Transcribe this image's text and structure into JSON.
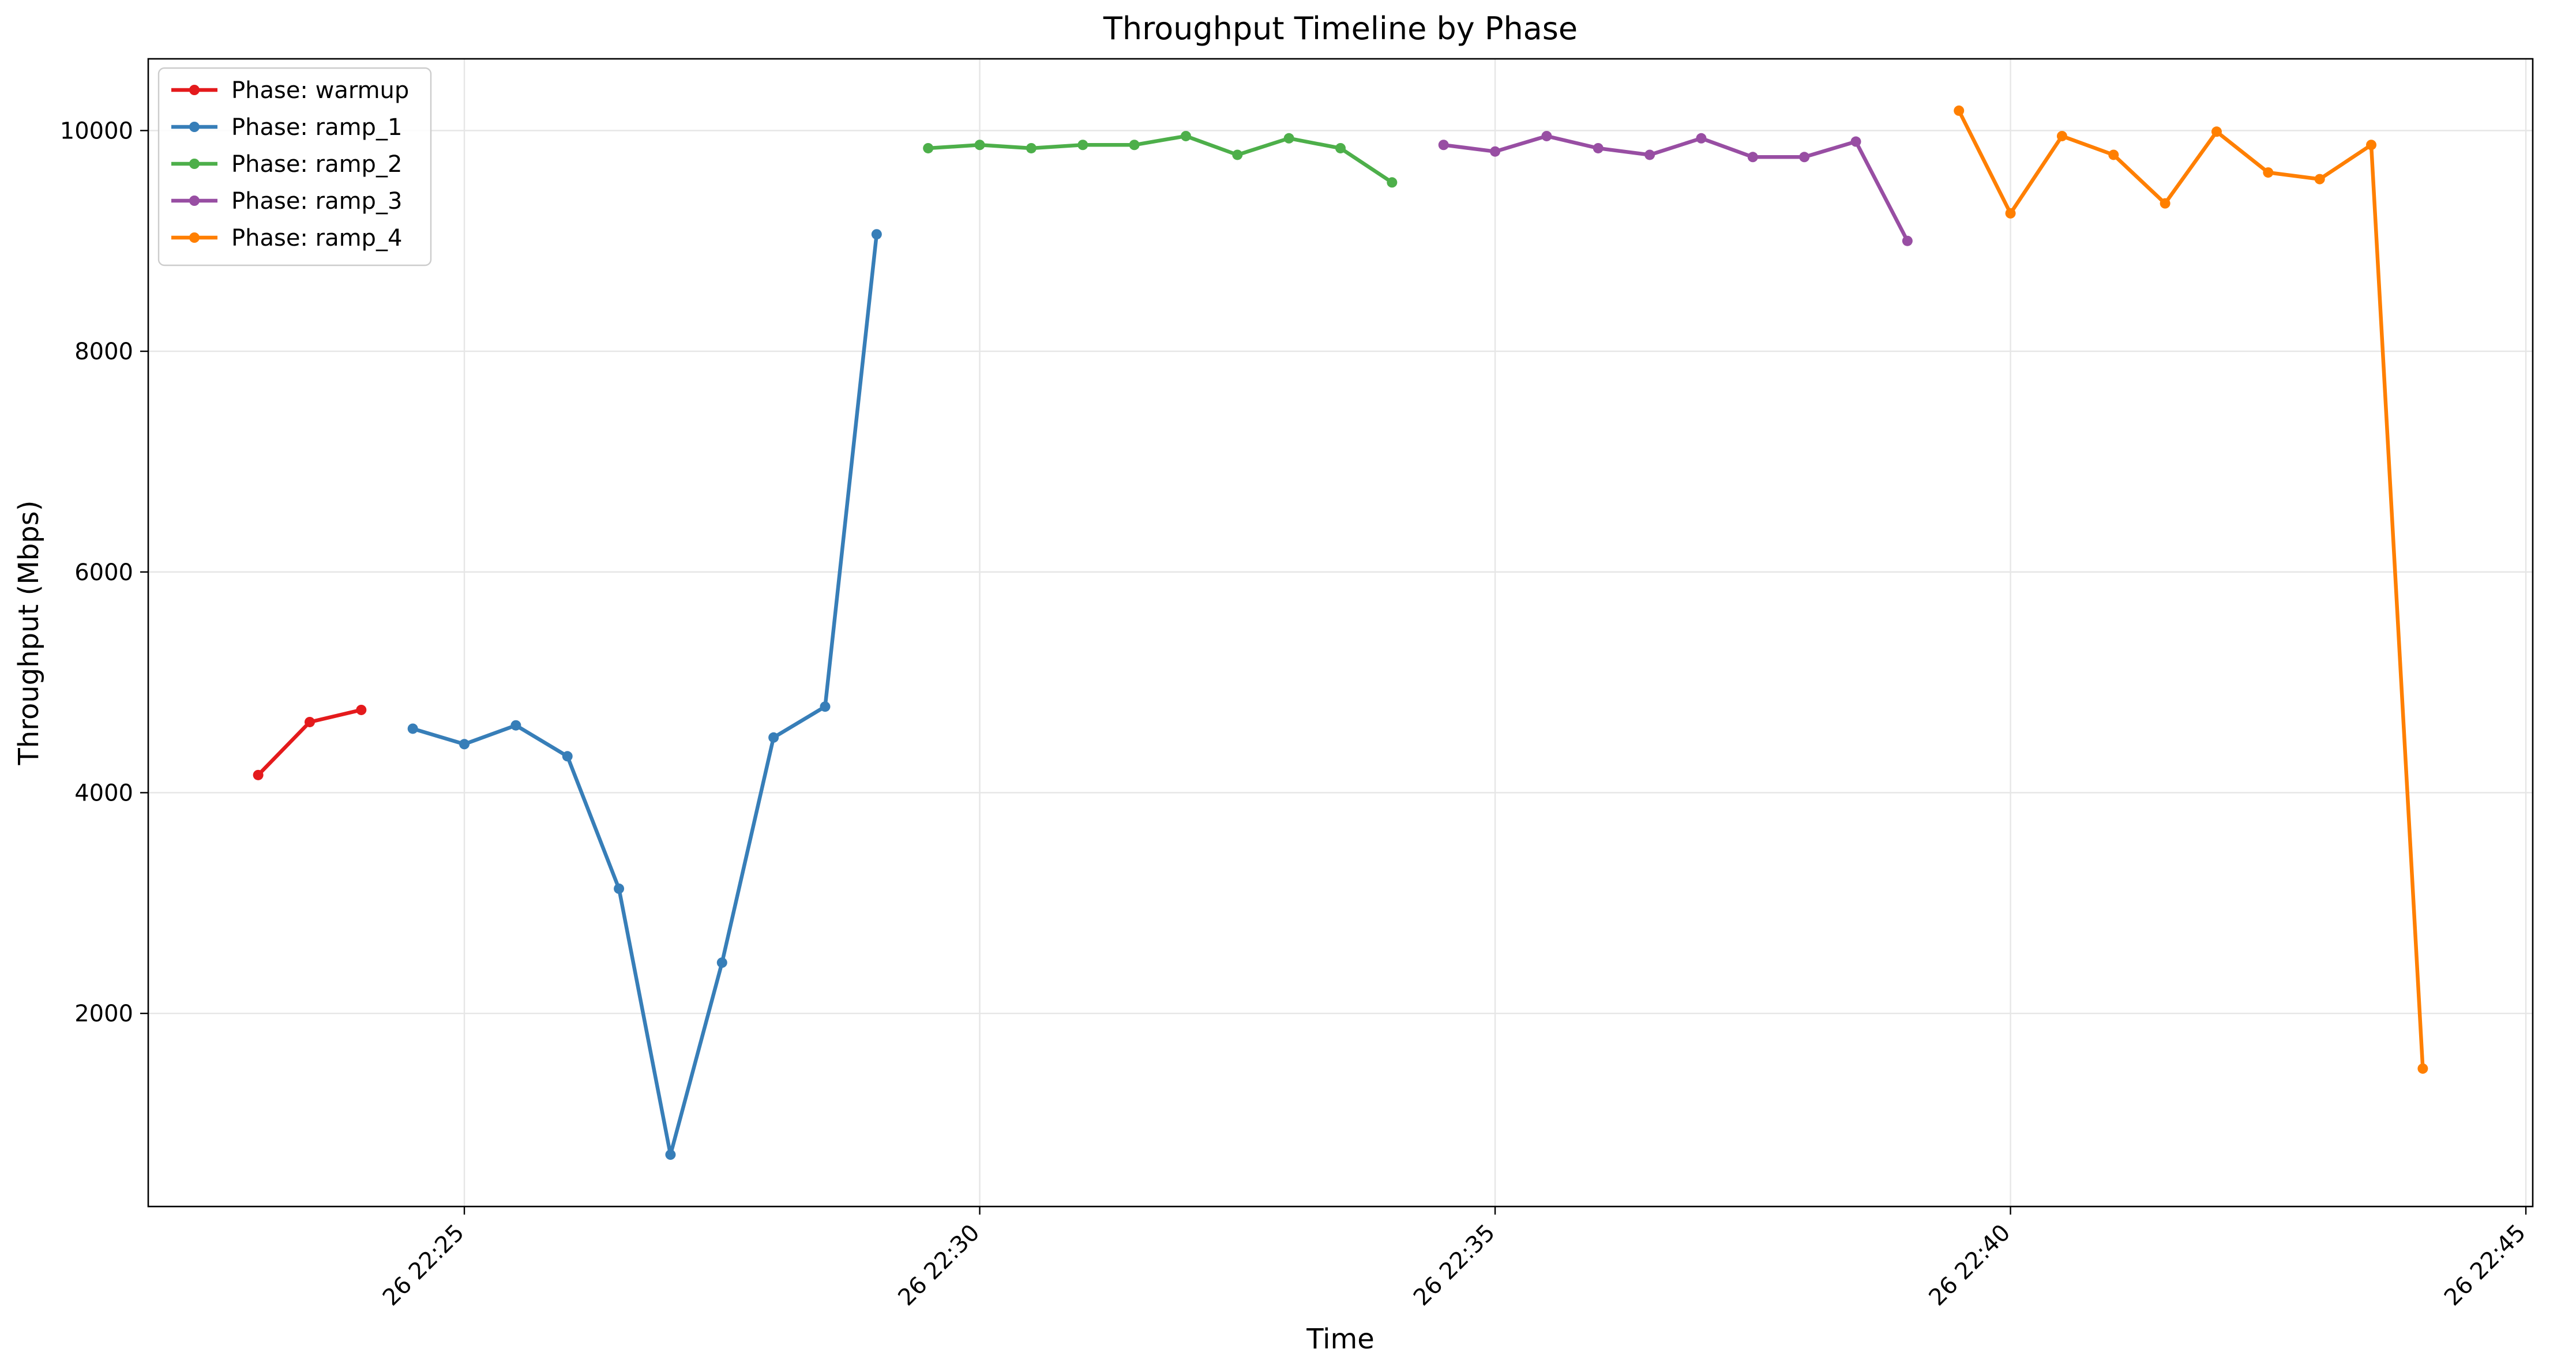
{
  "chart_data": {
    "type": "line",
    "title": "Throughput Timeline by Phase",
    "xlabel": "Time",
    "ylabel": "Throughput (Mbps)",
    "x_unit": "time (HH:MM:SS, day 26)",
    "xlim": [
      "22:21:56",
      "22:45:04"
    ],
    "ylim": [
      250,
      10650
    ],
    "grid": true,
    "legend_position": "upper left",
    "x_ticks": [
      {
        "t": "22:25:00",
        "label": "26 22:25"
      },
      {
        "t": "22:30:00",
        "label": "26 22:30"
      },
      {
        "t": "22:35:00",
        "label": "26 22:35"
      },
      {
        "t": "22:40:00",
        "label": "26 22:40"
      },
      {
        "t": "22:45:00",
        "label": "26 22:45"
      }
    ],
    "y_ticks": [
      {
        "v": 2000,
        "label": "2000"
      },
      {
        "v": 4000,
        "label": "4000"
      },
      {
        "v": 6000,
        "label": "6000"
      },
      {
        "v": 8000,
        "label": "8000"
      },
      {
        "v": 10000,
        "label": "10000"
      }
    ],
    "series": [
      {
        "name": "Phase: warmup",
        "legend_label": "Phase: warmup",
        "color": "#e41a1c",
        "x": [
          "22:23:00",
          "22:23:30",
          "22:24:00"
        ],
        "y": [
          4160,
          4640,
          4750
        ]
      },
      {
        "name": "Phase: ramp_1",
        "legend_label": "Phase: ramp_1",
        "color": "#377eb8",
        "x": [
          "22:24:30",
          "22:25:00",
          "22:25:30",
          "22:26:00",
          "22:26:30",
          "22:27:00",
          "22:27:30",
          "22:28:00",
          "22:28:30",
          "22:29:00"
        ],
        "y": [
          4580,
          4440,
          4610,
          4330,
          3130,
          720,
          2460,
          4500,
          4780,
          9060
        ]
      },
      {
        "name": "Phase: ramp_2",
        "legend_label": "Phase: ramp_2",
        "color": "#4daf4a",
        "x": [
          "22:29:30",
          "22:30:00",
          "22:30:30",
          "22:31:00",
          "22:31:30",
          "22:32:00",
          "22:32:30",
          "22:33:00",
          "22:33:30",
          "22:34:00"
        ],
        "y": [
          9840,
          9870,
          9840,
          9870,
          9870,
          9950,
          9780,
          9930,
          9840,
          9530
        ]
      },
      {
        "name": "Phase: ramp_3",
        "legend_label": "Phase: ramp_3",
        "color": "#984ea3",
        "x": [
          "22:34:30",
          "22:35:00",
          "22:35:30",
          "22:36:00",
          "22:36:30",
          "22:37:00",
          "22:37:30",
          "22:38:00",
          "22:38:30",
          "22:39:00"
        ],
        "y": [
          9870,
          9810,
          9950,
          9840,
          9780,
          9930,
          9760,
          9760,
          9900,
          9000
        ]
      },
      {
        "name": "Phase: ramp_4",
        "legend_label": "Phase: ramp_4",
        "color": "#ff7f00",
        "x": [
          "22:39:30",
          "22:40:00",
          "22:40:30",
          "22:41:00",
          "22:41:30",
          "22:42:00",
          "22:42:30",
          "22:43:00",
          "22:43:30",
          "22:44:00"
        ],
        "y": [
          10180,
          9250,
          9950,
          9780,
          9340,
          9990,
          9620,
          9560,
          9870,
          1500
        ]
      }
    ]
  }
}
